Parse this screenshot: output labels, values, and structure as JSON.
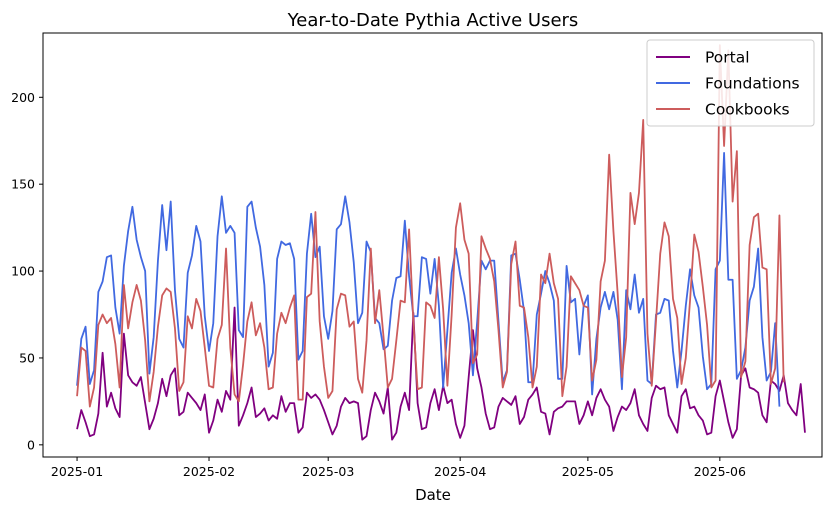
{
  "chart_data": {
    "type": "line",
    "title": "Year-to-Date Pythia Active Users",
    "xlabel": "Date",
    "ylabel": "",
    "x_start": "2025-01-01",
    "x_end": "2025-06-17",
    "xlim": [
      "2024-12-24",
      "2025-06-25"
    ],
    "ylim": [
      -7,
      237
    ],
    "x_ticks": [
      "2025-01",
      "2025-02",
      "2025-03",
      "2025-04",
      "2025-05",
      "2025-06"
    ],
    "y_ticks": [
      0,
      50,
      100,
      150,
      200
    ],
    "grid": false,
    "legend_position": "top-right",
    "series": [
      {
        "name": "Portal",
        "color": "#800080",
        "values": [
          9,
          20,
          13,
          5,
          6,
          18,
          53,
          22,
          30,
          21,
          16,
          64,
          40,
          36,
          34,
          39,
          24,
          9,
          15,
          24,
          38,
          28,
          40,
          44,
          17,
          19,
          30,
          27,
          24,
          20,
          29,
          7,
          14,
          26,
          19,
          31,
          26,
          79,
          11,
          17,
          24,
          33,
          16,
          18,
          21,
          14,
          17,
          15,
          28,
          19,
          24,
          24,
          7,
          10,
          30,
          27,
          29,
          26,
          20,
          13,
          6,
          11,
          22,
          27,
          24,
          25,
          24,
          3,
          5,
          20,
          30,
          25,
          18,
          33,
          3,
          7,
          22,
          30,
          20,
          76,
          24,
          9,
          10,
          24,
          32,
          20,
          34,
          24,
          26,
          12,
          4,
          11,
          39,
          66,
          44,
          33,
          18,
          9,
          10,
          22,
          27,
          25,
          23,
          28,
          12,
          16,
          26,
          29,
          33,
          19,
          18,
          6,
          19,
          21,
          22,
          25,
          25,
          25,
          12,
          17,
          25,
          17,
          27,
          32,
          26,
          22,
          8,
          16,
          22,
          20,
          24,
          32,
          17,
          12,
          8,
          27,
          34,
          32,
          33,
          17,
          12,
          7,
          28,
          32,
          21,
          22,
          17,
          14,
          6,
          7,
          28,
          37,
          25,
          13,
          4,
          9,
          40,
          44,
          33,
          32,
          30,
          17,
          13,
          37,
          35,
          31,
          40,
          24,
          20,
          17,
          35,
          7
        ]
      },
      {
        "name": "Foundations",
        "color": "#4169e1",
        "values": [
          34,
          61,
          68,
          35,
          43,
          88,
          94,
          108,
          109,
          79,
          64,
          103,
          123,
          137,
          118,
          108,
          100,
          41,
          62,
          106,
          138,
          112,
          140,
          89,
          61,
          56,
          99,
          109,
          126,
          117,
          74,
          54,
          70,
          120,
          143,
          122,
          126,
          122,
          66,
          62,
          137,
          140,
          125,
          114,
          92,
          45,
          53,
          107,
          117,
          115,
          116,
          107,
          49,
          54,
          110,
          133,
          108,
          114,
          74,
          61,
          77,
          124,
          127,
          143,
          128,
          105,
          70,
          76,
          117,
          111,
          73,
          70,
          55,
          57,
          83,
          96,
          97,
          129,
          97,
          74,
          74,
          108,
          107,
          87,
          107,
          80,
          33,
          66,
          99,
          113,
          98,
          86,
          70,
          40,
          71,
          106,
          101,
          106,
          106,
          71,
          36,
          43,
          109,
          110,
          95,
          77,
          36,
          36,
          75,
          87,
          100,
          93,
          83,
          38,
          38,
          103,
          82,
          84,
          52,
          80,
          86,
          29,
          61,
          79,
          88,
          78,
          88,
          72,
          32,
          89,
          78,
          98,
          76,
          84,
          37,
          35,
          75,
          76,
          84,
          83,
          54,
          33,
          54,
          80,
          101,
          86,
          79,
          51,
          32,
          35,
          101,
          106,
          168,
          95,
          95,
          38,
          43,
          56,
          83,
          91,
          113,
          62,
          37,
          42,
          70,
          22
        ]
      },
      {
        "name": "Cookbooks",
        "color": "#cd5c5c",
        "values": [
          28,
          56,
          54,
          22,
          33,
          69,
          75,
          70,
          73,
          58,
          33,
          92,
          67,
          82,
          92,
          83,
          60,
          25,
          42,
          68,
          86,
          90,
          88,
          67,
          31,
          36,
          74,
          67,
          84,
          77,
          56,
          34,
          33,
          61,
          69,
          113,
          56,
          29,
          25,
          46,
          71,
          82,
          63,
          70,
          56,
          32,
          33,
          64,
          76,
          70,
          79,
          86,
          26,
          26,
          85,
          87,
          134,
          71,
          45,
          27,
          31,
          78,
          87,
          86,
          68,
          71,
          38,
          30,
          60,
          113,
          70,
          89,
          62,
          33,
          38,
          60,
          83,
          82,
          124,
          71,
          32,
          33,
          82,
          80,
          73,
          108,
          78,
          34,
          75,
          125,
          139,
          118,
          110,
          47,
          52,
          120,
          113,
          107,
          94,
          66,
          33,
          42,
          104,
          117,
          80,
          79,
          62,
          33,
          45,
          98,
          93,
          110,
          93,
          84,
          28,
          45,
          97,
          93,
          89,
          80,
          79,
          37,
          49,
          94,
          106,
          167,
          123,
          87,
          39,
          62,
          145,
          127,
          145,
          187,
          64,
          34,
          71,
          110,
          128,
          120,
          84,
          73,
          35,
          50,
          83,
          121,
          111,
          91,
          69,
          33,
          37,
          230,
          172,
          227,
          140,
          169,
          39,
          48,
          115,
          131,
          133,
          102,
          101,
          35,
          44,
          132,
          36
        ]
      }
    ]
  }
}
